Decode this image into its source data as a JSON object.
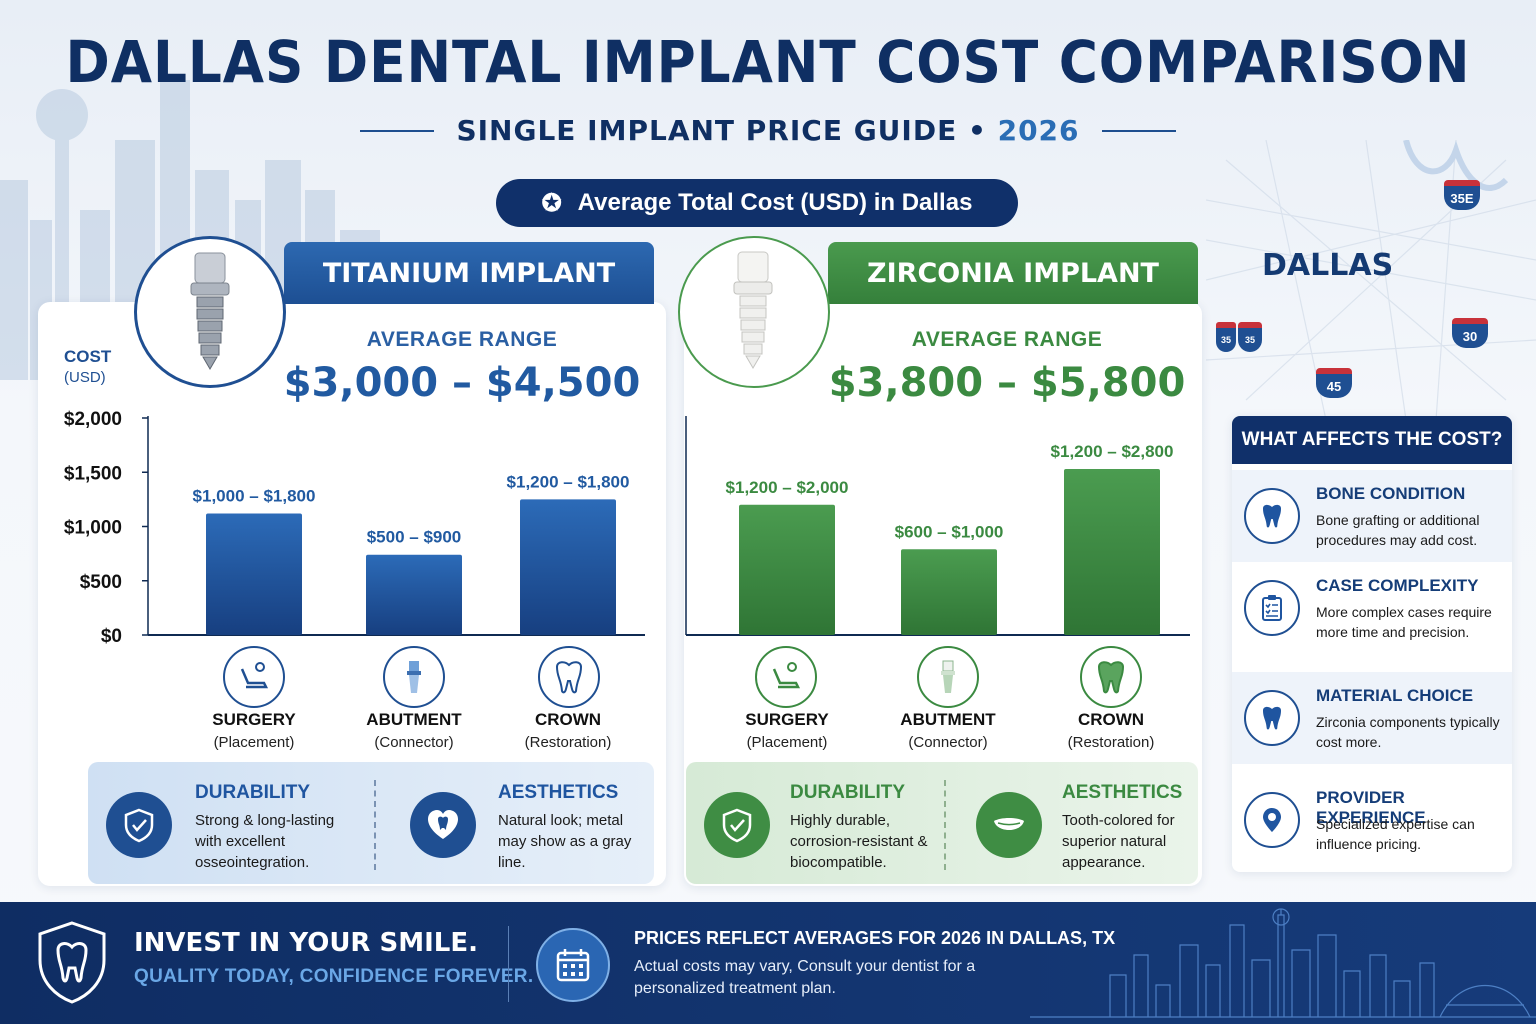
{
  "header": {
    "title": "DALLAS DENTAL IMPLANT COST COMPARISON",
    "subtitle": "SINGLE IMPLANT PRICE GUIDE •",
    "year": "2026",
    "pill": "Average Total Cost (USD) in Dallas"
  },
  "chart_data": [
    {
      "type": "bar",
      "title": "TITANIUM IMPLANT",
      "subtitle_label": "AVERAGE RANGE",
      "subtitle_value": "$3,000 – $4,500",
      "ylabel": "COST",
      "ylabel_unit": "(USD)",
      "ylim": [
        0,
        2000
      ],
      "yticks": [
        "$2,000",
        "$1,500",
        "$1,000",
        "$500",
        "$0"
      ],
      "ytick_values": [
        2000,
        1500,
        1000,
        500,
        0
      ],
      "categories": [
        "SURGERY",
        "ABUTMENT",
        "CROWN"
      ],
      "category_notes": [
        "(Placement)",
        "(Connector)",
        "(Restoration)"
      ],
      "values": [
        1120,
        740,
        1250
      ],
      "data_labels": [
        "$1,000 – $1,800",
        "$500 – $900",
        "$1,200 – $1,800"
      ],
      "color": "#1f55a0",
      "grid": false
    },
    {
      "type": "bar",
      "title": "ZIRCONIA IMPLANT",
      "subtitle_label": "AVERAGE RANGE",
      "subtitle_value": "$3,800 – $5,800",
      "ylim": [
        0,
        2000
      ],
      "categories": [
        "SURGERY",
        "ABUTMENT",
        "CROWN"
      ],
      "category_notes": [
        "(Placement)",
        "(Connector)",
        "(Restoration)"
      ],
      "values": [
        1200,
        790,
        1530
      ],
      "data_labels": [
        "$1,200 – $2,000",
        "$600 – $1,000",
        "$1,200 – $2,800"
      ],
      "color": "#3b8a41",
      "grid": false
    }
  ],
  "titanium_features": {
    "durability_title": "DURABILITY",
    "durability_text": "Strong & long-lasting with excellent osseointegration.",
    "aesthetics_title": "AESTHETICS",
    "aesthetics_text": "Natural look; metal may show as a gray line."
  },
  "zirconia_features": {
    "durability_title": "DURABILITY",
    "durability_text": "Highly durable, corrosion-resistant & biocompatible.",
    "aesthetics_title": "AESTHETICS",
    "aesthetics_text": "Tooth-colored for superior natural appearance."
  },
  "map": {
    "city": "DALLAS",
    "highways": [
      "35E",
      "30",
      "45",
      "35",
      "35"
    ]
  },
  "factors": {
    "heading": "WHAT AFFECTS THE COST?",
    "items": [
      {
        "title": "BONE CONDITION",
        "text": "Bone grafting or additional procedures may add cost.",
        "icon": "tooth-icon"
      },
      {
        "title": "CASE COMPLEXITY",
        "text": "More complex cases require more time and precision.",
        "icon": "clipboard-icon"
      },
      {
        "title": "MATERIAL CHOICE",
        "text": "Zirconia components typically cost more.",
        "icon": "tooth-icon"
      },
      {
        "title": "PROVIDER EXPERIENCE",
        "text": "Specialized expertise can influence pricing.",
        "icon": "location-pin-icon"
      }
    ]
  },
  "footer": {
    "headline": "INVEST IN YOUR SMILE.",
    "tagline": "QUALITY TODAY, CONFIDENCE FOREVER.",
    "note_title": "PRICES REFLECT AVERAGES FOR 2026 IN DALLAS, TX",
    "note_text": "Actual costs may vary, Consult your dentist for a personalized treatment plan."
  },
  "colors": {
    "navy": "#10306a",
    "titanium_blue": "#1f55a0",
    "zirconia_green": "#3b8a41"
  }
}
